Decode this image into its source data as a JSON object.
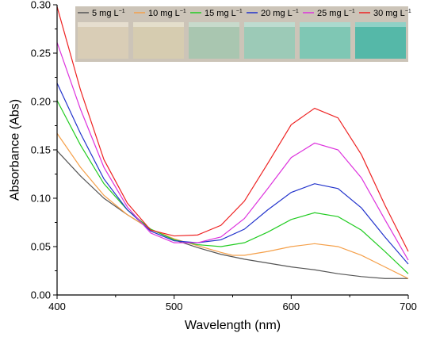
{
  "chart_data": {
    "type": "line",
    "xlabel": "Wavelength (nm)",
    "ylabel": "Absorbance (Abs)",
    "xlim": [
      400,
      700
    ],
    "ylim": [
      0.0,
      0.3
    ],
    "x_ticks": [
      "400",
      "500",
      "600",
      "700"
    ],
    "y_ticks": [
      "0.00",
      "0.05",
      "0.10",
      "0.15",
      "0.20",
      "0.25",
      "0.30"
    ],
    "grid": false,
    "legend_position": "top",
    "legend_unit": "mg L",
    "legend_unit_sup": "−1",
    "inset": {
      "description": "photo of six vials with solutions ranging from pale beige to teal",
      "vial_colors": [
        "#d9cdb6",
        "#d6ccb0",
        "#a9c6b0",
        "#9ccab7",
        "#7fc7b4",
        "#55b8a8"
      ]
    },
    "series": [
      {
        "name": "5",
        "color": "#555555",
        "points": [
          [
            400,
            0.149
          ],
          [
            420,
            0.123
          ],
          [
            440,
            0.1
          ],
          [
            460,
            0.083
          ],
          [
            480,
            0.068
          ],
          [
            500,
            0.057
          ],
          [
            520,
            0.049
          ],
          [
            540,
            0.042
          ],
          [
            560,
            0.037
          ],
          [
            580,
            0.033
          ],
          [
            600,
            0.029
          ],
          [
            620,
            0.026
          ],
          [
            640,
            0.022
          ],
          [
            660,
            0.019
          ],
          [
            680,
            0.017
          ],
          [
            700,
            0.017
          ]
        ]
      },
      {
        "name": "10",
        "color": "#f5a04a",
        "points": [
          [
            400,
            0.167
          ],
          [
            420,
            0.132
          ],
          [
            440,
            0.103
          ],
          [
            460,
            0.083
          ],
          [
            480,
            0.068
          ],
          [
            500,
            0.058
          ],
          [
            520,
            0.051
          ],
          [
            540,
            0.044
          ],
          [
            550,
            0.041
          ],
          [
            560,
            0.041
          ],
          [
            580,
            0.045
          ],
          [
            600,
            0.05
          ],
          [
            620,
            0.053
          ],
          [
            640,
            0.05
          ],
          [
            660,
            0.041
          ],
          [
            680,
            0.029
          ],
          [
            700,
            0.017
          ]
        ]
      },
      {
        "name": "15",
        "color": "#22cc22",
        "points": [
          [
            400,
            0.201
          ],
          [
            420,
            0.155
          ],
          [
            440,
            0.115
          ],
          [
            460,
            0.088
          ],
          [
            480,
            0.068
          ],
          [
            500,
            0.057
          ],
          [
            520,
            0.052
          ],
          [
            540,
            0.05
          ],
          [
            560,
            0.054
          ],
          [
            580,
            0.065
          ],
          [
            600,
            0.078
          ],
          [
            620,
            0.085
          ],
          [
            640,
            0.081
          ],
          [
            660,
            0.067
          ],
          [
            680,
            0.045
          ],
          [
            700,
            0.022
          ]
        ]
      },
      {
        "name": "20",
        "color": "#2233cc",
        "points": [
          [
            400,
            0.219
          ],
          [
            420,
            0.167
          ],
          [
            440,
            0.12
          ],
          [
            460,
            0.088
          ],
          [
            480,
            0.066
          ],
          [
            500,
            0.056
          ],
          [
            520,
            0.054
          ],
          [
            540,
            0.057
          ],
          [
            560,
            0.068
          ],
          [
            580,
            0.088
          ],
          [
            600,
            0.106
          ],
          [
            620,
            0.115
          ],
          [
            640,
            0.11
          ],
          [
            660,
            0.09
          ],
          [
            680,
            0.06
          ],
          [
            700,
            0.032
          ]
        ]
      },
      {
        "name": "25",
        "color": "#dd33dd",
        "points": [
          [
            400,
            0.261
          ],
          [
            420,
            0.192
          ],
          [
            440,
            0.132
          ],
          [
            460,
            0.091
          ],
          [
            480,
            0.064
          ],
          [
            500,
            0.054
          ],
          [
            520,
            0.054
          ],
          [
            540,
            0.06
          ],
          [
            560,
            0.079
          ],
          [
            580,
            0.11
          ],
          [
            600,
            0.142
          ],
          [
            620,
            0.157
          ],
          [
            640,
            0.15
          ],
          [
            660,
            0.121
          ],
          [
            680,
            0.078
          ],
          [
            700,
            0.036
          ]
        ]
      },
      {
        "name": "30",
        "color": "#ee2222",
        "points": [
          [
            400,
            0.298
          ],
          [
            420,
            0.212
          ],
          [
            440,
            0.14
          ],
          [
            460,
            0.095
          ],
          [
            480,
            0.067
          ],
          [
            500,
            0.061
          ],
          [
            520,
            0.062
          ],
          [
            540,
            0.072
          ],
          [
            560,
            0.097
          ],
          [
            580,
            0.136
          ],
          [
            600,
            0.176
          ],
          [
            620,
            0.193
          ],
          [
            640,
            0.183
          ],
          [
            660,
            0.145
          ],
          [
            680,
            0.093
          ],
          [
            700,
            0.045
          ]
        ]
      }
    ]
  }
}
